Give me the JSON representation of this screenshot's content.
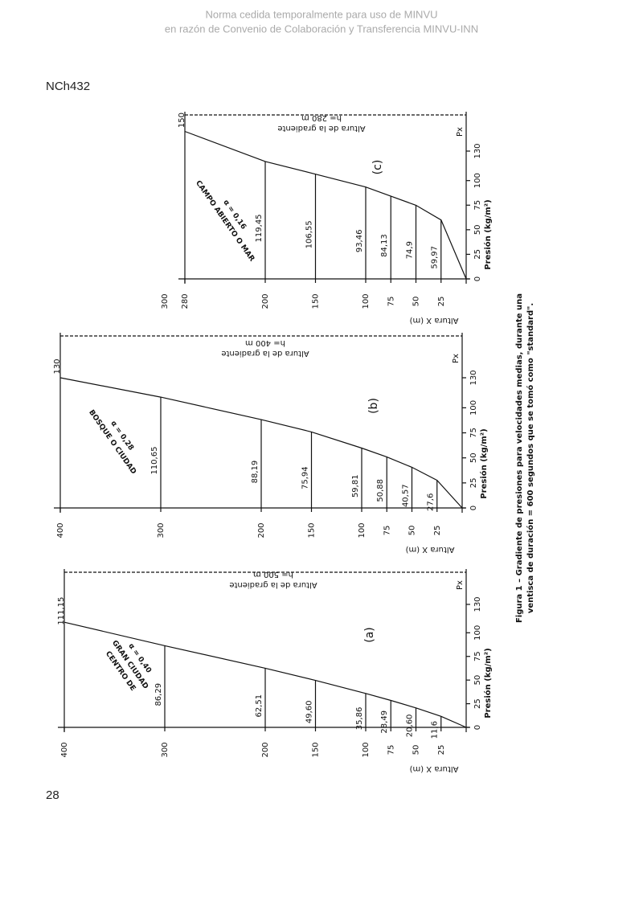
{
  "header": {
    "lines": [
      "Norma cedida temporalmente para uso de MINVU",
      "en razón de Convenio de Colaboración y Transferencia MINVU-INN"
    ]
  },
  "doc_code": "NCh432",
  "page_number": "28",
  "figure": {
    "caption": [
      "Figura 1 – Gradiente de presiones para velocidades medias, durante una",
      "ventisca de duración = 600 segundos que se tomó como \"standard\"."
    ],
    "panels": [
      {
        "label": "(a)",
        "description": [
          "CENTRO DE",
          "GRAN CIUDAD",
          "α = 0,40"
        ],
        "gradient_title": "Altura de la gradiente",
        "gradient_height": "h= 500 m",
        "levels": [
          {
            "height": "25",
            "value": "11,6"
          },
          {
            "height": "50",
            "value": "20,60"
          },
          {
            "height": "75",
            "value": "28,49"
          },
          {
            "height": "100",
            "value": "35,86"
          },
          {
            "height": "150",
            "value": "49,60"
          },
          {
            "height": "200",
            "value": "62,51"
          },
          {
            "height": "300",
            "value": "86,29"
          },
          {
            "height": "400",
            "value": "111,15"
          }
        ],
        "pressure_ticks": [
          "0",
          "25",
          "50",
          "75",
          "100",
          "130"
        ],
        "pressure_symbol": "Px",
        "x_axis_label": "Altura X (m)",
        "y_axis_label": "Presión (kg/m²)"
      },
      {
        "label": "(b)",
        "description": [
          "BOSQUE O CIUDAD",
          "α = 0,28"
        ],
        "gradient_title": "Altura de la gradiente",
        "gradient_height": "h= 400 m",
        "levels": [
          {
            "height": "25",
            "value": "27,6"
          },
          {
            "height": "50",
            "value": "40,57"
          },
          {
            "height": "75",
            "value": "50,88"
          },
          {
            "height": "100",
            "value": "59,81"
          },
          {
            "height": "150",
            "value": "75,94"
          },
          {
            "height": "200",
            "value": "88,19"
          },
          {
            "height": "300",
            "value": "110,65"
          },
          {
            "height": "400",
            "value": "130"
          }
        ],
        "pressure_ticks": [
          "0",
          "25",
          "50",
          "75",
          "100",
          "130"
        ],
        "pressure_symbol": "Px",
        "x_axis_label": "Altura X (m)",
        "y_axis_label": "Presión (kg/m²)"
      },
      {
        "label": "(c)",
        "description": [
          "CAMPO ABIERTO O MAR",
          "α = 0,16"
        ],
        "gradient_title": "Altura de la gradiente",
        "gradient_height": "h= 280 m",
        "levels": [
          {
            "height": "25",
            "value": "59,97"
          },
          {
            "height": "50",
            "value": "74,9"
          },
          {
            "height": "75",
            "value": "84,13"
          },
          {
            "height": "100",
            "value": "93,46"
          },
          {
            "height": "150",
            "value": "106,55"
          },
          {
            "height": "200",
            "value": "119,45"
          },
          {
            "height": "280",
            "value": "150"
          }
        ],
        "top_tick": "300",
        "pressure_ticks": [
          "0",
          "25",
          "50",
          "75",
          "100",
          "130"
        ],
        "pressure_symbol": "Px",
        "x_axis_label": "Altura X (m)",
        "y_axis_label": "Presión (kg/m²)"
      }
    ]
  }
}
